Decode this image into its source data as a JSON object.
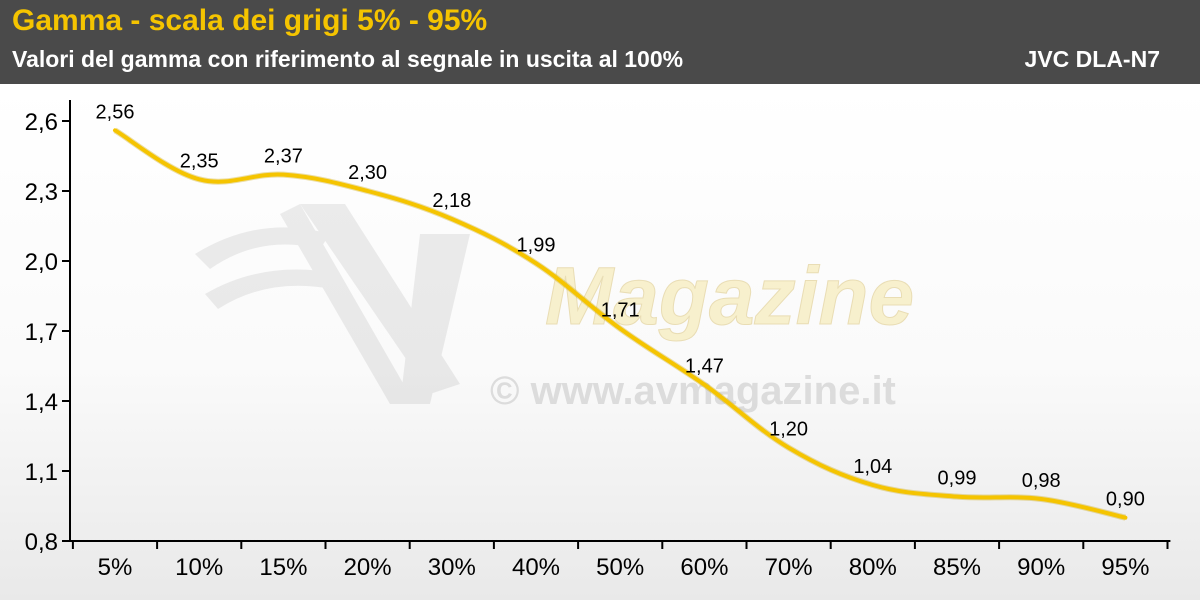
{
  "header": {
    "title": "Gamma - scala dei grigi 5% - 95%",
    "subtitle": "Valori del gamma con riferimento al segnale in uscita al 100%",
    "device": "JVC DLA-N7"
  },
  "watermark": {
    "logo_text": "Magazine",
    "url_text": "© www.avmagazine.it"
  },
  "colors": {
    "header_bg": "#4a4a4a",
    "title": "#f5c400",
    "line": "#f5c400",
    "axis": "#000000"
  },
  "chart_data": {
    "type": "line",
    "title": "Gamma - scala dei grigi 5% - 95%",
    "subtitle": "Valori del gamma con riferimento al segnale in uscita al 100%",
    "categories": [
      "5%",
      "10%",
      "15%",
      "20%",
      "30%",
      "40%",
      "50%",
      "60%",
      "70%",
      "80%",
      "85%",
      "90%",
      "95%"
    ],
    "series": [
      {
        "values": [
          2.56,
          2.35,
          2.37,
          2.3,
          2.18,
          1.99,
          1.71,
          1.47,
          1.2,
          1.04,
          0.99,
          0.98,
          0.9
        ],
        "labels": [
          "2,56",
          "2,35",
          "2,37",
          "2,30",
          "2,18",
          "1,99",
          "1,71",
          "1,47",
          "1,20",
          "1,04",
          "0,99",
          "0,98",
          "0,90"
        ]
      }
    ],
    "yticks": [
      0.8,
      1.1,
      1.4,
      1.7,
      2.0,
      2.3,
      2.6
    ],
    "ytick_labels": [
      "0,8",
      "1,1",
      "1,4",
      "1,7",
      "2,0",
      "2,3",
      "2,6"
    ],
    "ylim": [
      0.8,
      2.6
    ],
    "xlabel": "",
    "ylabel": "",
    "grid": false,
    "legend": "none"
  }
}
